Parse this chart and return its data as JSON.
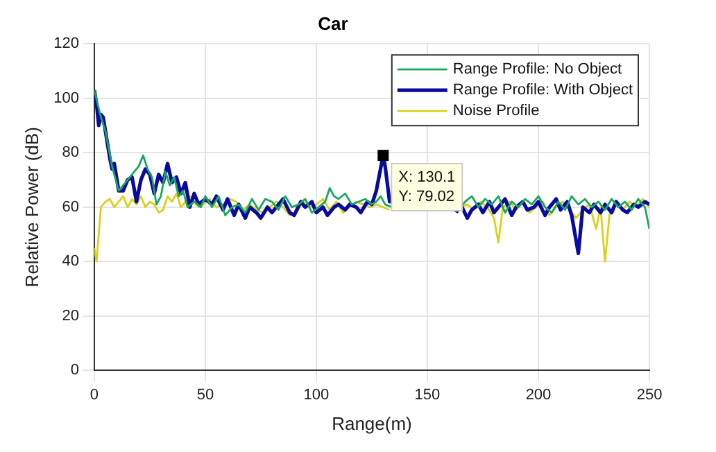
{
  "chart_data": {
    "type": "line",
    "title": "Car",
    "xlabel": "Range(m)",
    "ylabel": "Relative Power (dB)",
    "xlim": [
      0,
      250
    ],
    "xticks": [
      0,
      50,
      100,
      150,
      200,
      250
    ],
    "ylim": [
      0,
      120
    ],
    "yticks": [
      0,
      20,
      40,
      60,
      80,
      100,
      120
    ],
    "grid": true,
    "legend": "top right",
    "marker": "none",
    "line_style": "solid",
    "annotations": [
      {
        "text": "X: 130.1\nY: 79.02",
        "x": 130.1,
        "y": 79.02
      }
    ],
    "series": [
      {
        "name": "Range Profile: No Object",
        "color": "#1aa760",
        "x": [
          0,
          3,
          5,
          8,
          11,
          14,
          17,
          20,
          22,
          24,
          26,
          28,
          30,
          32,
          34,
          36,
          38,
          40,
          42,
          45,
          48,
          50,
          53,
          56,
          59,
          62,
          65,
          68,
          71,
          74,
          77,
          80,
          83,
          86,
          89,
          92,
          95,
          98,
          101,
          104,
          106,
          108,
          110,
          113,
          116,
          119,
          122,
          125,
          127,
          129,
          131,
          134,
          137,
          140,
          143,
          146,
          149,
          152,
          155,
          158,
          161,
          164,
          167,
          170,
          173,
          176,
          179,
          182,
          185,
          188,
          191,
          194,
          197,
          200,
          203,
          206,
          209,
          212,
          215,
          218,
          221,
          224,
          227,
          230,
          233,
          236,
          239,
          242,
          245,
          248,
          250
        ],
        "values": [
          103,
          93,
          88,
          75,
          66,
          69,
          72,
          75,
          79,
          74,
          71,
          61,
          64,
          73,
          68,
          71,
          64,
          66,
          60,
          62,
          60,
          64,
          60,
          64,
          57,
          60,
          61,
          58,
          63,
          59,
          63,
          62,
          59,
          64,
          60,
          61,
          63,
          58,
          60,
          62,
          67,
          64,
          63,
          65,
          61,
          62,
          63,
          61,
          62,
          64,
          61,
          60,
          null,
          null,
          null,
          null,
          null,
          null,
          null,
          null,
          null,
          59,
          62,
          64,
          60,
          63,
          61,
          64,
          58,
          62,
          60,
          63,
          61,
          64,
          60,
          58,
          62,
          59,
          64,
          61,
          63,
          60,
          62,
          59,
          63,
          60,
          62,
          59,
          63,
          60,
          52
        ]
      },
      {
        "name": "Range Profile: With Object",
        "color": "#0a0aa0",
        "x": [
          0,
          1,
          2,
          3,
          4,
          5,
          7,
          8,
          9,
          11,
          13,
          15,
          17,
          19,
          21,
          23,
          25,
          27,
          29,
          31,
          33,
          35,
          37,
          39,
          41,
          43,
          45,
          47,
          50,
          53,
          55,
          58,
          60,
          63,
          65,
          68,
          70,
          73,
          75,
          78,
          80,
          83,
          85,
          88,
          90,
          93,
          95,
          98,
          100,
          103,
          105,
          108,
          110,
          113,
          115,
          118,
          120,
          123,
          125,
          127,
          130.1,
          131,
          133,
          135,
          138,
          140,
          143,
          145,
          148,
          150,
          153,
          155,
          158,
          160,
          163,
          165,
          168,
          170,
          173,
          175,
          178,
          180,
          183,
          185,
          188,
          190,
          193,
          195,
          198,
          200,
          203,
          205,
          208,
          210,
          213,
          215,
          218,
          220,
          223,
          225,
          228,
          230,
          233,
          235,
          238,
          240,
          243,
          245,
          248,
          250
        ],
        "values": [
          103,
          98,
          90,
          94,
          93,
          88,
          78,
          74,
          76,
          66,
          66,
          70,
          71,
          62,
          70,
          74,
          72,
          65,
          72,
          69,
          76,
          69,
          71,
          65,
          69,
          60,
          65,
          61,
          63,
          61,
          64,
          59,
          63,
          57,
          61,
          56,
          60,
          58,
          56,
          60,
          58,
          61,
          63,
          58,
          57,
          62,
          60,
          62,
          58,
          60,
          57,
          60,
          61,
          59,
          61,
          60,
          58,
          62,
          61,
          66,
          79.02,
          75,
          62,
          62,
          null,
          null,
          null,
          null,
          null,
          null,
          null,
          null,
          null,
          null,
          58,
          61,
          56,
          59,
          61,
          58,
          62,
          58,
          61,
          63,
          57,
          60,
          62,
          59,
          60,
          62,
          57,
          60,
          63,
          59,
          62,
          57,
          43,
          60,
          58,
          61,
          58,
          61,
          58,
          62,
          59,
          58,
          61,
          60,
          62,
          61
        ]
      },
      {
        "name": "Noise Profile",
        "color": "#d8d21a",
        "x": [
          0,
          1,
          2,
          3,
          5,
          7,
          9,
          11,
          13,
          15,
          17,
          19,
          21,
          23,
          25,
          27,
          29,
          31,
          33,
          35,
          37,
          39,
          41,
          43,
          45,
          47,
          49,
          52,
          55,
          58,
          61,
          64,
          67,
          70,
          73,
          76,
          79,
          82,
          85,
          88,
          91,
          94,
          97,
          100,
          103,
          106,
          109,
          112,
          115,
          118,
          121,
          124,
          127,
          130,
          133,
          136,
          139,
          142,
          145,
          148,
          150,
          153,
          156,
          159,
          162,
          165,
          168,
          171,
          174,
          177,
          180,
          182,
          184,
          187,
          190,
          193,
          196,
          199,
          202,
          205,
          208,
          211,
          214,
          217,
          220,
          223,
          226,
          228,
          230,
          232,
          235,
          238,
          241,
          244,
          247,
          250
        ],
        "values": [
          45,
          40,
          50,
          60,
          62,
          63,
          60,
          62,
          64,
          60,
          63,
          61,
          64,
          60,
          62,
          61,
          58,
          59,
          64,
          62,
          65,
          60,
          62,
          64,
          62,
          60,
          61,
          63,
          60,
          61,
          63,
          62,
          59,
          61,
          59,
          58,
          60,
          62,
          60,
          57,
          58,
          62,
          60,
          61,
          63,
          59,
          62,
          58,
          60,
          62,
          61,
          60,
          61,
          60,
          59,
          null,
          null,
          null,
          null,
          null,
          null,
          null,
          null,
          null,
          null,
          60,
          61,
          59,
          62,
          60,
          56,
          47,
          60,
          62,
          59,
          62,
          58,
          60,
          62,
          57,
          60,
          62,
          59,
          56,
          59,
          61,
          52,
          60,
          40,
          57,
          61,
          59,
          62,
          60,
          63,
          60
        ]
      }
    ]
  }
}
